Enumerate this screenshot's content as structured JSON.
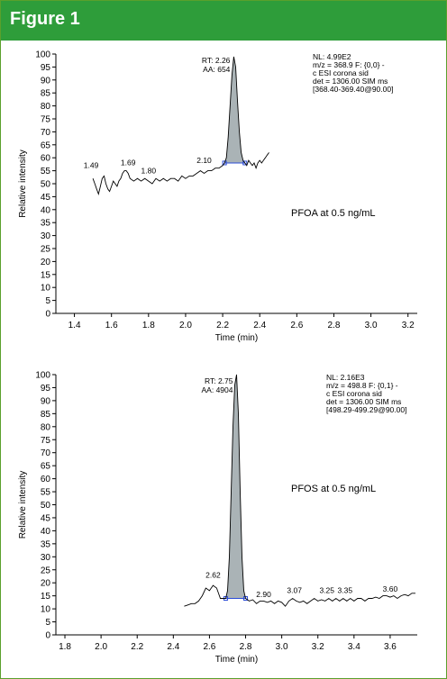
{
  "header": {
    "title": "Figure 1"
  },
  "chart_data": [
    {
      "type": "line",
      "ylabel": "Relative intensity",
      "xlabel": "Time (min)",
      "xlim": [
        1.3,
        3.25
      ],
      "ylim": [
        0,
        100
      ],
      "xticks": [
        "1.4",
        "1.6",
        "1.8",
        "2.0",
        "2.2",
        "2.4",
        "2.6",
        "2.8",
        "3.0",
        "3.2"
      ],
      "yticks": [
        "0",
        "5",
        "10",
        "15",
        "20",
        "25",
        "30",
        "35",
        "40",
        "45",
        "50",
        "55",
        "60",
        "65",
        "70",
        "75",
        "80",
        "85",
        "90",
        "95",
        "100"
      ],
      "compound_label": "PFOA at 0.5 ng/mL",
      "peak": {
        "rt_label": "RT: 2.26",
        "aa_label": "AA: 654",
        "start": 2.21,
        "end": 2.32
      },
      "info_lines": [
        "NL: 4.99E2",
        "m/z = 368.9 F: {0,0} -",
        "c ESI corona sid",
        "det = 1306.00 SIM ms",
        "[368.40-369.40@90.00]"
      ],
      "peak_labels": [
        {
          "text": "1.49",
          "x": 1.49,
          "y": 55
        },
        {
          "text": "1.69",
          "x": 1.69,
          "y": 56
        },
        {
          "text": "1.80",
          "x": 1.8,
          "y": 53
        },
        {
          "text": "2.10",
          "x": 2.1,
          "y": 57
        }
      ],
      "points": [
        [
          1.5,
          52
        ],
        [
          1.51,
          50
        ],
        [
          1.52,
          48
        ],
        [
          1.53,
          46
        ],
        [
          1.54,
          49
        ],
        [
          1.55,
          52
        ],
        [
          1.56,
          53
        ],
        [
          1.57,
          50
        ],
        [
          1.58,
          48
        ],
        [
          1.59,
          47
        ],
        [
          1.6,
          49
        ],
        [
          1.61,
          51
        ],
        [
          1.62,
          50
        ],
        [
          1.63,
          49
        ],
        [
          1.64,
          51
        ],
        [
          1.65,
          52
        ],
        [
          1.66,
          54
        ],
        [
          1.67,
          55
        ],
        [
          1.68,
          55
        ],
        [
          1.69,
          54
        ],
        [
          1.7,
          52
        ],
        [
          1.72,
          51
        ],
        [
          1.74,
          52
        ],
        [
          1.76,
          51
        ],
        [
          1.78,
          52
        ],
        [
          1.8,
          51
        ],
        [
          1.82,
          50
        ],
        [
          1.84,
          52
        ],
        [
          1.86,
          51
        ],
        [
          1.88,
          52
        ],
        [
          1.9,
          51
        ],
        [
          1.92,
          52
        ],
        [
          1.94,
          52
        ],
        [
          1.96,
          51
        ],
        [
          1.98,
          53
        ],
        [
          2.0,
          52
        ],
        [
          2.02,
          53
        ],
        [
          2.04,
          53
        ],
        [
          2.06,
          54
        ],
        [
          2.08,
          55
        ],
        [
          2.1,
          54
        ],
        [
          2.12,
          55
        ],
        [
          2.14,
          55
        ],
        [
          2.16,
          56
        ],
        [
          2.18,
          56
        ],
        [
          2.2,
          57
        ],
        [
          2.21,
          58
        ],
        [
          2.22,
          60
        ],
        [
          2.23,
          68
        ],
        [
          2.24,
          80
        ],
        [
          2.25,
          92
        ],
        [
          2.26,
          99
        ],
        [
          2.27,
          95
        ],
        [
          2.28,
          82
        ],
        [
          2.29,
          70
        ],
        [
          2.3,
          62
        ],
        [
          2.31,
          59
        ],
        [
          2.32,
          58
        ],
        [
          2.33,
          57
        ],
        [
          2.34,
          59
        ],
        [
          2.35,
          58
        ],
        [
          2.36,
          57
        ],
        [
          2.37,
          58
        ],
        [
          2.38,
          56
        ],
        [
          2.39,
          58
        ],
        [
          2.4,
          59
        ],
        [
          2.41,
          58
        ],
        [
          2.42,
          59
        ],
        [
          2.43,
          60
        ],
        [
          2.44,
          61
        ],
        [
          2.45,
          62
        ]
      ]
    },
    {
      "type": "line",
      "ylabel": "Relative intensity",
      "xlabel": "Time (min)",
      "xlim": [
        1.75,
        3.75
      ],
      "ylim": [
        0,
        100
      ],
      "xticks": [
        "1.8",
        "2.0",
        "2.2",
        "2.4",
        "2.6",
        "2.8",
        "3.0",
        "3.2",
        "3.4",
        "3.6"
      ],
      "yticks": [
        "0",
        "5",
        "10",
        "15",
        "20",
        "25",
        "30",
        "35",
        "40",
        "45",
        "50",
        "55",
        "60",
        "65",
        "70",
        "75",
        "80",
        "85",
        "90",
        "95",
        "100"
      ],
      "compound_label": "PFOS at 0.5 ng/mL",
      "peak": {
        "rt_label": "RT: 2.75",
        "aa_label": "AA: 4904",
        "start": 2.69,
        "end": 2.8
      },
      "info_lines": [
        "NL: 2.16E3",
        "m/z = 498.8 F: {0,1} -",
        "c ESI corona sid",
        "det = 1306.00 SIM ms",
        "[498.29-499.29@90.00]"
      ],
      "peak_labels": [
        {
          "text": "2.62",
          "x": 2.62,
          "y": 21
        },
        {
          "text": "2.90",
          "x": 2.9,
          "y": 13.5
        },
        {
          "text": "3.07",
          "x": 3.07,
          "y": 15
        },
        {
          "text": "3.25",
          "x": 3.25,
          "y": 15
        },
        {
          "text": "3.35",
          "x": 3.35,
          "y": 15
        },
        {
          "text": "3.60",
          "x": 3.6,
          "y": 15.5
        }
      ],
      "points": [
        [
          2.46,
          11
        ],
        [
          2.48,
          11.5
        ],
        [
          2.5,
          12
        ],
        [
          2.52,
          12
        ],
        [
          2.54,
          13
        ],
        [
          2.56,
          15
        ],
        [
          2.58,
          18
        ],
        [
          2.6,
          17
        ],
        [
          2.62,
          19
        ],
        [
          2.64,
          18
        ],
        [
          2.66,
          14
        ],
        [
          2.68,
          14
        ],
        [
          2.69,
          14
        ],
        [
          2.7,
          17
        ],
        [
          2.71,
          30
        ],
        [
          2.72,
          55
        ],
        [
          2.73,
          80
        ],
        [
          2.74,
          96
        ],
        [
          2.75,
          100
        ],
        [
          2.76,
          85
        ],
        [
          2.77,
          55
        ],
        [
          2.78,
          30
        ],
        [
          2.79,
          17
        ],
        [
          2.8,
          14
        ],
        [
          2.82,
          13
        ],
        [
          2.84,
          13.5
        ],
        [
          2.86,
          12
        ],
        [
          2.88,
          13
        ],
        [
          2.9,
          13
        ],
        [
          2.92,
          12.5
        ],
        [
          2.94,
          13
        ],
        [
          2.96,
          12
        ],
        [
          2.98,
          13
        ],
        [
          3.0,
          12.5
        ],
        [
          3.02,
          11
        ],
        [
          3.04,
          13
        ],
        [
          3.06,
          14
        ],
        [
          3.08,
          13
        ],
        [
          3.1,
          12.5
        ],
        [
          3.12,
          13
        ],
        [
          3.14,
          12
        ],
        [
          3.16,
          13
        ],
        [
          3.18,
          14
        ],
        [
          3.2,
          13
        ],
        [
          3.22,
          13.5
        ],
        [
          3.24,
          13
        ],
        [
          3.26,
          14
        ],
        [
          3.28,
          13
        ],
        [
          3.3,
          14
        ],
        [
          3.32,
          13
        ],
        [
          3.34,
          14
        ],
        [
          3.36,
          13
        ],
        [
          3.38,
          14
        ],
        [
          3.4,
          13
        ],
        [
          3.42,
          14
        ],
        [
          3.44,
          14
        ],
        [
          3.46,
          13
        ],
        [
          3.48,
          14
        ],
        [
          3.5,
          14
        ],
        [
          3.52,
          14.5
        ],
        [
          3.54,
          14
        ],
        [
          3.56,
          15
        ],
        [
          3.58,
          15
        ],
        [
          3.6,
          14.5
        ],
        [
          3.62,
          15
        ],
        [
          3.64,
          14
        ],
        [
          3.66,
          15
        ],
        [
          3.68,
          15.5
        ],
        [
          3.7,
          15
        ],
        [
          3.72,
          16
        ],
        [
          3.74,
          16
        ]
      ]
    }
  ]
}
